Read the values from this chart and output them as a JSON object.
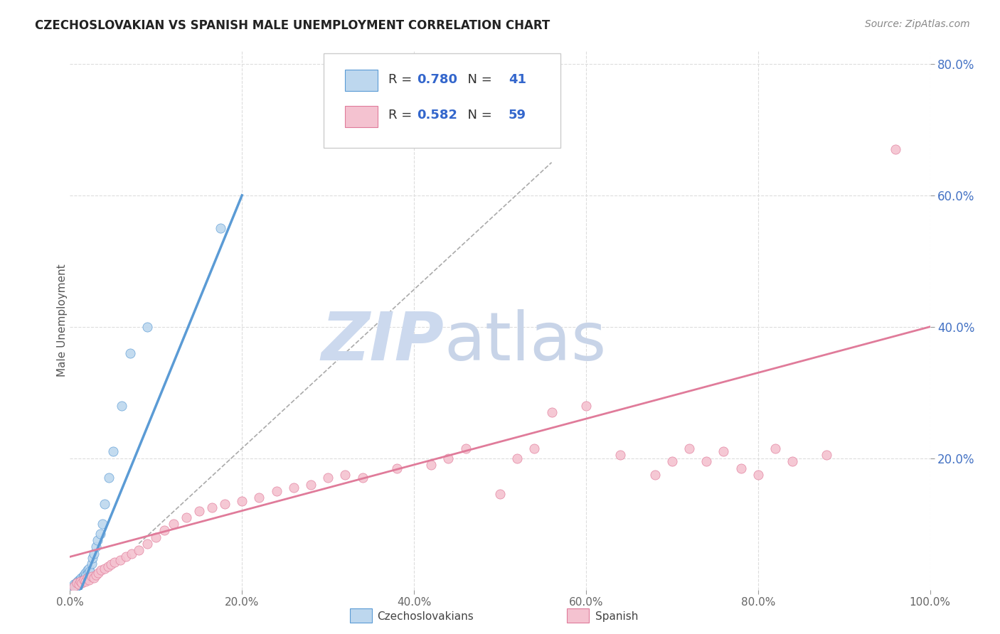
{
  "title": "CZECHOSLOVAKIAN VS SPANISH MALE UNEMPLOYMENT CORRELATION CHART",
  "source": "Source: ZipAtlas.com",
  "ylabel": "Male Unemployment",
  "xlim": [
    0,
    1.0
  ],
  "ylim": [
    0,
    0.82
  ],
  "xtick_labels": [
    "0.0%",
    "20.0%",
    "40.0%",
    "60.0%",
    "80.0%",
    "100.0%"
  ],
  "xtick_vals": [
    0,
    0.2,
    0.4,
    0.6,
    0.8,
    1.0
  ],
  "ytick_labels": [
    "20.0%",
    "40.0%",
    "60.0%",
    "80.0%"
  ],
  "ytick_vals": [
    0.2,
    0.4,
    0.6,
    0.8
  ],
  "background_color": "#ffffff",
  "grid_color": "#dddddd",
  "blue_color": "#5b9bd5",
  "blue_fill": "#bdd7ee",
  "pink_color": "#e07b9a",
  "pink_fill": "#f4c2d0",
  "legend_blue_R": "0.780",
  "legend_blue_N": "41",
  "legend_pink_R": "0.582",
  "legend_pink_N": "59",
  "blue_R": 0.78,
  "blue_N": 41,
  "pink_R": 0.582,
  "pink_N": 59,
  "blue_line_x": [
    0.0,
    0.2
  ],
  "blue_line_y": [
    -0.04,
    0.6
  ],
  "pink_line_x": [
    0.0,
    1.0
  ],
  "pink_line_y": [
    0.05,
    0.4
  ],
  "gray_line_x": [
    0.08,
    0.56
  ],
  "gray_line_y": [
    0.07,
    0.65
  ],
  "blue_scatter_x": [
    0.004,
    0.005,
    0.006,
    0.007,
    0.007,
    0.008,
    0.009,
    0.009,
    0.01,
    0.01,
    0.011,
    0.011,
    0.012,
    0.012,
    0.013,
    0.013,
    0.014,
    0.015,
    0.015,
    0.016,
    0.017,
    0.018,
    0.019,
    0.02,
    0.021,
    0.022,
    0.023,
    0.025,
    0.026,
    0.028,
    0.03,
    0.032,
    0.035,
    0.038,
    0.04,
    0.045,
    0.05,
    0.06,
    0.07,
    0.09,
    0.175
  ],
  "blue_scatter_y": [
    0.005,
    0.008,
    0.006,
    0.005,
    0.01,
    0.007,
    0.006,
    0.012,
    0.008,
    0.015,
    0.009,
    0.013,
    0.01,
    0.016,
    0.012,
    0.018,
    0.014,
    0.02,
    0.016,
    0.022,
    0.018,
    0.025,
    0.022,
    0.03,
    0.025,
    0.032,
    0.028,
    0.04,
    0.048,
    0.055,
    0.065,
    0.075,
    0.085,
    0.1,
    0.13,
    0.17,
    0.21,
    0.28,
    0.36,
    0.4,
    0.55
  ],
  "pink_scatter_x": [
    0.005,
    0.008,
    0.01,
    0.012,
    0.014,
    0.016,
    0.018,
    0.02,
    0.022,
    0.025,
    0.028,
    0.03,
    0.033,
    0.036,
    0.04,
    0.044,
    0.048,
    0.052,
    0.058,
    0.065,
    0.072,
    0.08,
    0.09,
    0.1,
    0.11,
    0.12,
    0.135,
    0.15,
    0.165,
    0.18,
    0.2,
    0.22,
    0.24,
    0.26,
    0.28,
    0.3,
    0.32,
    0.34,
    0.38,
    0.42,
    0.44,
    0.46,
    0.5,
    0.52,
    0.54,
    0.56,
    0.6,
    0.64,
    0.68,
    0.7,
    0.72,
    0.74,
    0.76,
    0.78,
    0.8,
    0.82,
    0.84,
    0.88,
    0.96
  ],
  "pink_scatter_y": [
    0.005,
    0.01,
    0.008,
    0.012,
    0.01,
    0.015,
    0.012,
    0.018,
    0.015,
    0.02,
    0.018,
    0.022,
    0.025,
    0.03,
    0.032,
    0.035,
    0.038,
    0.042,
    0.045,
    0.05,
    0.055,
    0.06,
    0.07,
    0.08,
    0.09,
    0.1,
    0.11,
    0.12,
    0.125,
    0.13,
    0.135,
    0.14,
    0.15,
    0.155,
    0.16,
    0.17,
    0.175,
    0.17,
    0.185,
    0.19,
    0.2,
    0.215,
    0.145,
    0.2,
    0.215,
    0.27,
    0.28,
    0.205,
    0.175,
    0.195,
    0.215,
    0.195,
    0.21,
    0.185,
    0.175,
    0.215,
    0.195,
    0.205,
    0.67
  ]
}
